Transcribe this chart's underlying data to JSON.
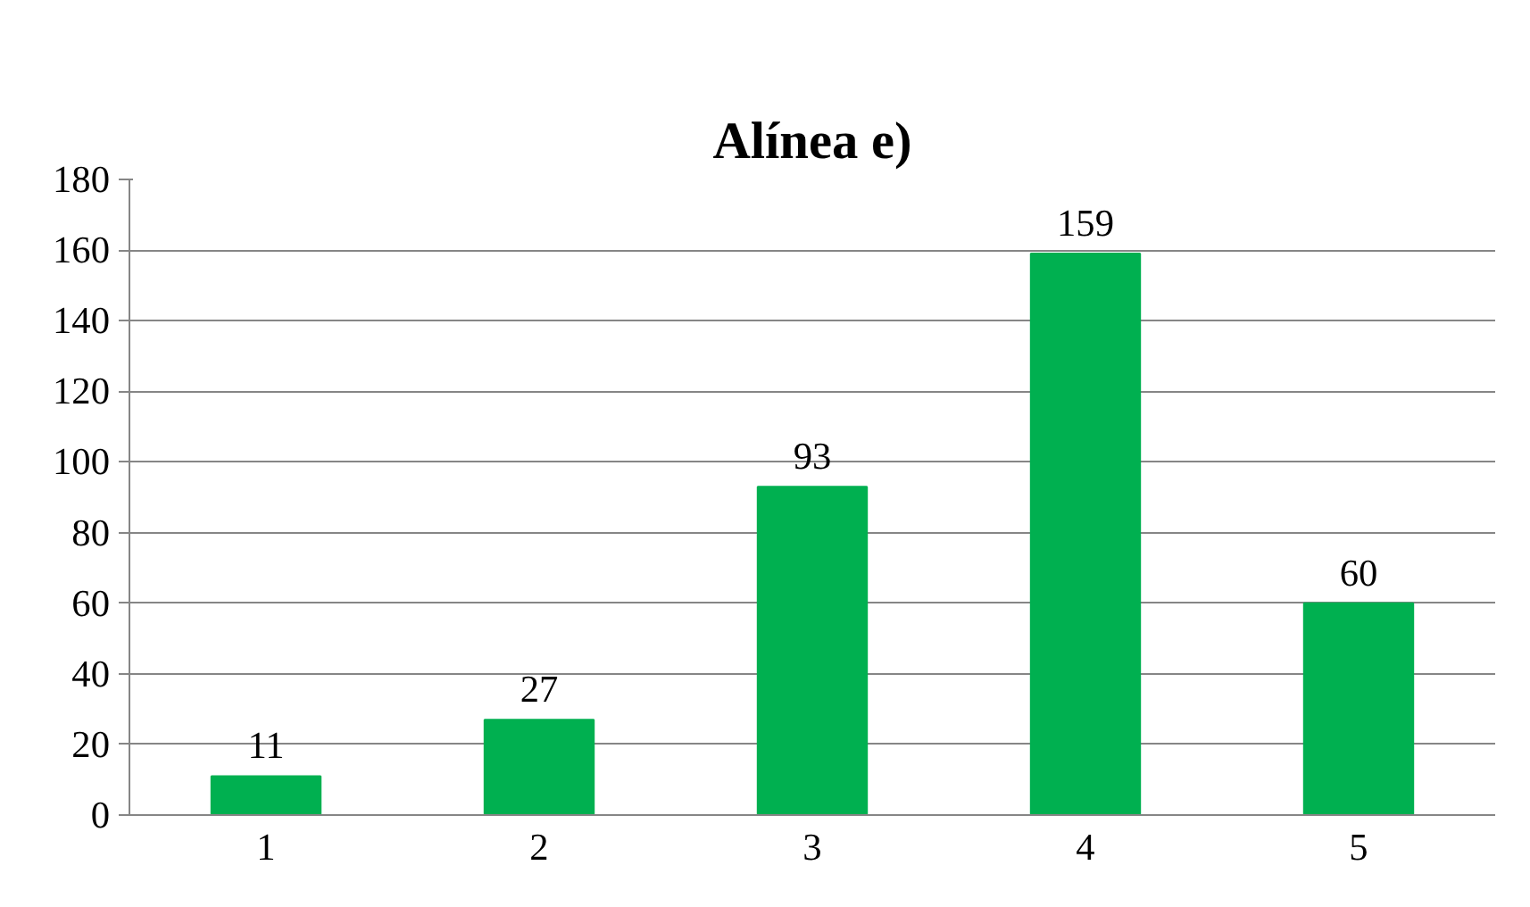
{
  "chart_data": {
    "type": "bar",
    "title": "Alínea e)",
    "categories": [
      "1",
      "2",
      "3",
      "4",
      "5"
    ],
    "values": [
      11,
      27,
      93,
      159,
      60
    ],
    "color": "#00b050",
    "ylim": [
      0,
      180
    ],
    "yticks": [
      0,
      20,
      40,
      60,
      80,
      100,
      120,
      140,
      160,
      180
    ],
    "grid": "y",
    "data_labels": true
  }
}
